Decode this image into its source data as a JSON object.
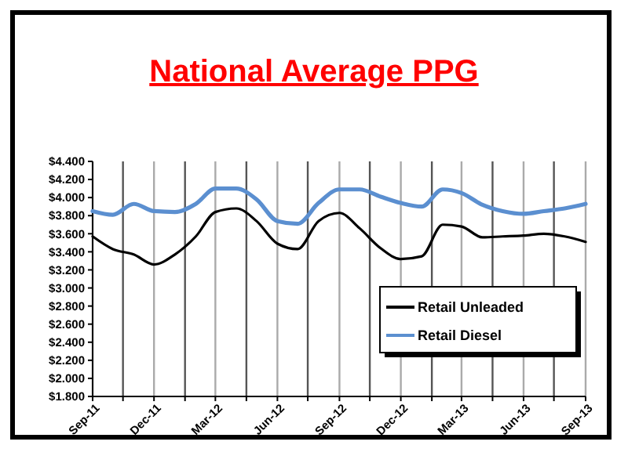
{
  "chart_data": {
    "type": "line",
    "title": "National Average PPG",
    "x": [
      "2011-09",
      "2011-10",
      "2011-11",
      "2011-12",
      "2012-01",
      "2012-02",
      "2012-03",
      "2012-04",
      "2012-05",
      "2012-06",
      "2012-07",
      "2012-08",
      "2012-09",
      "2012-10",
      "2012-11",
      "2012-12",
      "2013-01",
      "2013-02",
      "2013-03",
      "2013-04",
      "2013-05",
      "2013-06",
      "2013-07",
      "2013-08",
      "2013-09"
    ],
    "series": [
      {
        "name": "Retail Unleaded",
        "color": "#000000",
        "values": [
          3.57,
          3.43,
          3.37,
          3.26,
          3.37,
          3.57,
          3.84,
          3.88,
          3.74,
          3.49,
          3.43,
          3.74,
          3.83,
          3.66,
          3.44,
          3.32,
          3.35,
          3.7,
          3.68,
          3.56,
          3.57,
          3.58,
          3.6,
          3.57,
          3.51
        ]
      },
      {
        "name": "Retail Diesel",
        "color": "#5b8fd0",
        "values": [
          3.85,
          3.81,
          3.93,
          3.85,
          3.84,
          3.93,
          4.1,
          4.1,
          3.98,
          3.74,
          3.71,
          3.94,
          4.09,
          4.09,
          4.01,
          3.94,
          3.9,
          4.09,
          4.05,
          3.92,
          3.85,
          3.82,
          3.85,
          3.88,
          3.93
        ]
      }
    ],
    "xlim": [
      "2011-09",
      "2013-09"
    ],
    "xticks": [
      {
        "value": "2011-09",
        "label": "Sep-11"
      },
      {
        "value": "2011-10-16",
        "label": null
      },
      {
        "value": "2011-12",
        "label": "Dec-11"
      },
      {
        "value": "2012-01-16",
        "label": null
      },
      {
        "value": "2012-03",
        "label": "Mar-12"
      },
      {
        "value": "2012-04-16",
        "label": null
      },
      {
        "value": "2012-06",
        "label": "Jun-12"
      },
      {
        "value": "2012-07-16",
        "label": null
      },
      {
        "value": "2012-09",
        "label": "Sep-12"
      },
      {
        "value": "2012-10-16",
        "label": null
      },
      {
        "value": "2012-12",
        "label": "Dec-12"
      },
      {
        "value": "2013-01-16",
        "label": null
      },
      {
        "value": "2013-03",
        "label": "Mar-13"
      },
      {
        "value": "2013-04-16",
        "label": null
      },
      {
        "value": "2013-06",
        "label": "Jun-13"
      },
      {
        "value": "2013-07-16",
        "label": null
      },
      {
        "value": "2013-09",
        "label": "Sep-13"
      }
    ],
    "ylim": [
      1.8,
      4.4
    ],
    "yticks": [
      {
        "value": 1.8,
        "label": "$1.800"
      },
      {
        "value": 2.0,
        "label": "$2.000"
      },
      {
        "value": 2.2,
        "label": "$2.200"
      },
      {
        "value": 2.4,
        "label": "$2.400"
      },
      {
        "value": 2.6,
        "label": "$2.600"
      },
      {
        "value": 2.8,
        "label": "$2.800"
      },
      {
        "value": 3.0,
        "label": "$3.000"
      },
      {
        "value": 3.2,
        "label": "$3.200"
      },
      {
        "value": 3.4,
        "label": "$3.400"
      },
      {
        "value": 3.6,
        "label": "$3.600"
      },
      {
        "value": 3.8,
        "label": "$3.800"
      },
      {
        "value": 4.0,
        "label": "$4.000"
      },
      {
        "value": 4.2,
        "label": "$4.200"
      },
      {
        "value": 4.4,
        "label": "$4.400"
      }
    ],
    "grid": "x",
    "legend": "bottom right",
    "marker": "none",
    "line_style": "solid"
  }
}
